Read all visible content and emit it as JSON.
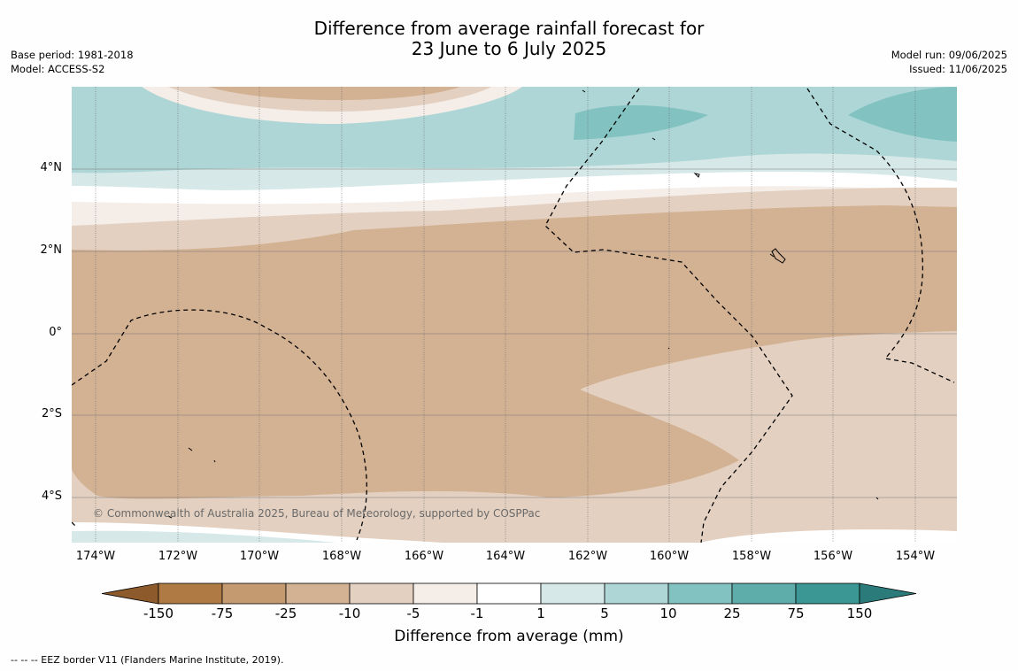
{
  "header": {
    "title_line1": "Difference from average rainfall forecast for",
    "title_line2": "23 June to 6 July 2025",
    "base_period": "Base period: 1981-2018",
    "model": "Model: ACCESS-S2",
    "model_run": "Model run: 09/06/2025",
    "issued": "Issued: 11/06/2025"
  },
  "map": {
    "lat_labels": [
      "4°N",
      "2°N",
      "0°",
      "2°S",
      "4°S"
    ],
    "lon_labels": [
      "174°W",
      "172°W",
      "170°W",
      "168°W",
      "166°W",
      "164°W",
      "162°W",
      "160°W",
      "158°W",
      "156°W",
      "154°W"
    ],
    "copyright": "© Commonwealth of Australia 2025, Bureau of Meteorology, supported by COSPPac"
  },
  "colorbar": {
    "title": "Difference from average (mm)",
    "tick_labels": [
      "-150",
      "-75",
      "-25",
      "-10",
      "-5",
      "-1",
      "1",
      "5",
      "10",
      "25",
      "75",
      "150"
    ],
    "colors": [
      "#8c5a2b",
      "#b07a45",
      "#c49a70",
      "#d3b193",
      "#e3d0c0",
      "#f4ede8",
      "#ffffff",
      "#d6e9e8",
      "#aed6d6",
      "#82c2c1",
      "#5fadab",
      "#3a9794",
      "#2a7b79"
    ]
  },
  "legend": {
    "eez_note": "-- -- -- EEZ border V11 (Flanders Marine Institute, 2019)."
  }
}
